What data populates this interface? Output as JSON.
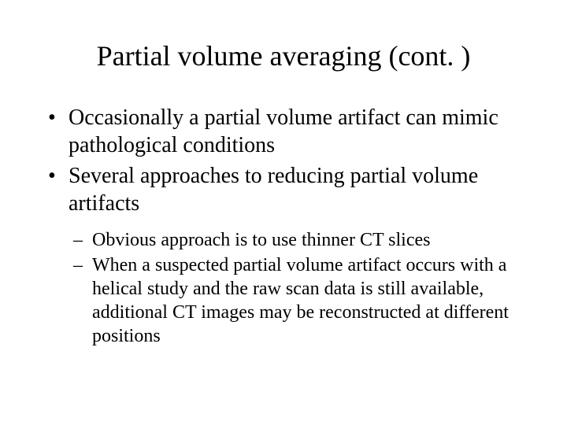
{
  "slide": {
    "title": "Partial volume averaging (cont. )",
    "bullets": [
      "Occasionally a partial volume artifact can mimic pathological conditions",
      "Several approaches to reducing partial volume artifacts"
    ],
    "subbullets": [
      "Obvious approach is to use thinner CT slices",
      "When a suspected partial volume artifact occurs with a helical study and the raw scan data is still available, additional CT images may be reconstructed at different positions"
    ],
    "colors": {
      "background": "#ffffff",
      "text": "#000000"
    },
    "typography": {
      "font_family": "Times New Roman",
      "title_fontsize": 36,
      "bullet_fontsize": 28,
      "subbullet_fontsize": 24
    }
  }
}
